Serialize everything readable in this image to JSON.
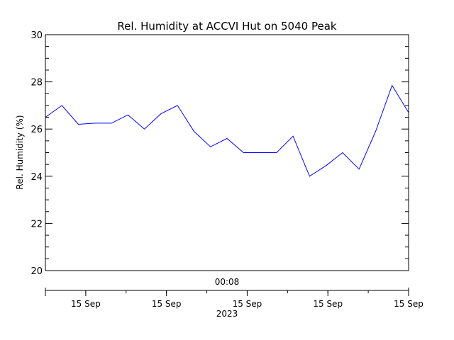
{
  "chart_data": {
    "type": "line",
    "title": "Rel. Humidity at ACCVI Hut on 5040 Peak",
    "ylabel": "Rel. Humidity (%)",
    "ylim": [
      20,
      30
    ],
    "y_ticks": [
      "20",
      "22",
      "24",
      "26",
      "28",
      "30"
    ],
    "x_upper_label": "00:08",
    "x_tick_labels": [
      "15 Sep",
      "15 Sep",
      "15 Sep",
      "15 Sep",
      "15 Sep"
    ],
    "x_year_label": "2023",
    "grid": false,
    "series": [
      {
        "color": "#0000ff",
        "values": [
          26.5,
          27.0,
          26.2,
          26.25,
          26.25,
          26.6,
          26.0,
          26.65,
          27.0,
          25.9,
          25.25,
          25.6,
          25.0,
          25.0,
          25.0,
          25.7,
          24.0,
          24.45,
          25.0,
          24.3,
          25.9,
          27.85,
          26.7
        ]
      }
    ]
  }
}
